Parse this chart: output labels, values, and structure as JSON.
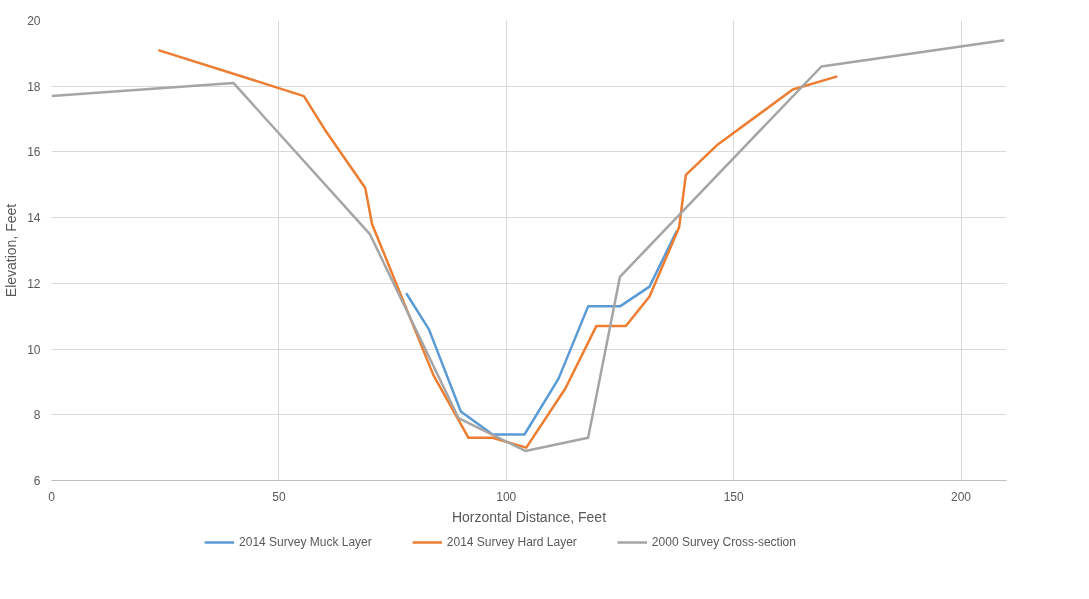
{
  "chart_data": {
    "type": "line",
    "xlabel": "Horzontal Distance, Feet",
    "ylabel": "Elevation, Feet",
    "xlim": [
      0,
      210
    ],
    "ylim": [
      6,
      20
    ],
    "xticks": [
      0,
      50,
      100,
      150,
      200
    ],
    "yticks": [
      6,
      8,
      10,
      12,
      14,
      16,
      18,
      20
    ],
    "grid": true,
    "legend": "bottom",
    "marker": "none",
    "line_style": "solid",
    "series": [
      {
        "name": "2014 Survey Muck Layer",
        "color": "#5b9bd5",
        "x": [
          78,
          83,
          90,
          97,
          104,
          111.5,
          118,
          125,
          131.5,
          137.5
        ],
        "values": [
          11.7,
          10.6,
          8.1,
          7.4,
          7.4,
          9.1,
          11.3,
          11.3,
          11.9,
          13.6
        ]
      },
      {
        "name": "2014 Survey Hard Layer",
        "color": "#ed7d31",
        "x": [
          23.5,
          55.5,
          60,
          69,
          70.5,
          84,
          91.7,
          97,
          104.4,
          113,
          119.8,
          126.3,
          131.5,
          138,
          139.5,
          146.3,
          163,
          172.8
        ],
        "values": [
          19.1,
          17.7,
          16.7,
          14.9,
          13.8,
          9.2,
          7.3,
          7.3,
          7.0,
          8.8,
          10.7,
          10.7,
          11.6,
          13.7,
          15.3,
          16.2,
          17.9,
          18.3
        ]
      },
      {
        "name": "2000 Survey Cross-section",
        "color": "#a5a5a5",
        "x": [
          0,
          40,
          70,
          89.5,
          104.2,
          118,
          125,
          169.3,
          209.5
        ],
        "values": [
          17.7,
          18.1,
          13.5,
          7.9,
          6.9,
          7.3,
          12.2,
          18.6,
          19.4
        ]
      }
    ]
  }
}
